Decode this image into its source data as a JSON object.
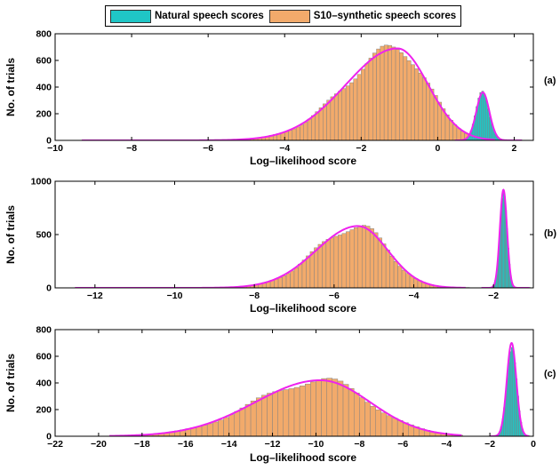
{
  "legend": {
    "natural_label": "Natural speech scores",
    "synthetic_label": "S10–synthetic speech scores"
  },
  "colors": {
    "natural": "#1fc6c6",
    "synthetic": "#f2aa6b",
    "fit": "#ee22ee",
    "bar_edge": "#7f7f7f"
  },
  "chart_data": [
    {
      "type": "bar",
      "panel_label": "(a)",
      "xlabel": "Log–likelihood score",
      "ylabel": "No. of trials",
      "xlim": [
        -10,
        2.5
      ],
      "ylim": [
        0,
        800
      ],
      "xticks": [
        -10,
        -8,
        -6,
        -4,
        -2,
        0,
        2
      ],
      "yticks": [
        0,
        200,
        400,
        600,
        800
      ],
      "grid": false,
      "series": [
        {
          "name": "S10–synthetic speech scores",
          "type": "histogram",
          "center": -1.05,
          "sigma_left": 1.35,
          "sigma_right": 0.8,
          "peak": 690,
          "x_min": -9.3,
          "x_max": 1.5,
          "bin_width": 0.1
        },
        {
          "name": "Natural speech scores",
          "type": "histogram",
          "center": 1.18,
          "sigma_left": 0.17,
          "sigma_right": 0.17,
          "peak": 360,
          "x_min": 0.45,
          "x_max": 2.2,
          "bin_width": 0.05
        }
      ]
    },
    {
      "type": "bar",
      "panel_label": "(b)",
      "xlabel": "Log–likelihood score",
      "ylabel": "No. of trials",
      "xlim": [
        -13,
        -1
      ],
      "ylim": [
        0,
        1000
      ],
      "xticks": [
        -12,
        -10,
        -8,
        -6,
        -4,
        -2
      ],
      "yticks": [
        0,
        500,
        1000
      ],
      "grid": false,
      "series": [
        {
          "name": "S10–synthetic speech scores",
          "type": "histogram",
          "center": -5.4,
          "sigma_left": 1.05,
          "sigma_right": 0.75,
          "peak": 580,
          "x_min": -12.5,
          "x_max": -2.7,
          "bin_width": 0.1
        },
        {
          "name": "Natural speech scores",
          "type": "histogram",
          "center": -1.75,
          "sigma_left": 0.09,
          "sigma_right": 0.09,
          "peak": 920,
          "x_min": -2.3,
          "x_max": -1.1,
          "bin_width": 0.03
        }
      ]
    },
    {
      "type": "bar",
      "panel_label": "(c)",
      "xlabel": "Log–likelihood score",
      "ylabel": "No. of trials",
      "xlim": [
        -22,
        0
      ],
      "ylim": [
        0,
        800
      ],
      "xticks": [
        -22,
        -20,
        -18,
        -16,
        -14,
        -12,
        -10,
        -8,
        -6,
        -4,
        -2,
        0
      ],
      "yticks": [
        0,
        200,
        400,
        600,
        800
      ],
      "grid": false,
      "series": [
        {
          "name": "S10–synthetic speech scores",
          "type": "histogram",
          "center": -9.8,
          "sigma_left": 3.0,
          "sigma_right": 2.3,
          "peak": 420,
          "x_min": -19.5,
          "x_max": -3.3,
          "bin_width": 0.25
        },
        {
          "name": "Natural speech scores",
          "type": "histogram",
          "center": -1.0,
          "sigma_left": 0.22,
          "sigma_right": 0.22,
          "peak": 700,
          "x_min": -2.0,
          "x_max": -0.2,
          "bin_width": 0.07
        }
      ]
    }
  ]
}
